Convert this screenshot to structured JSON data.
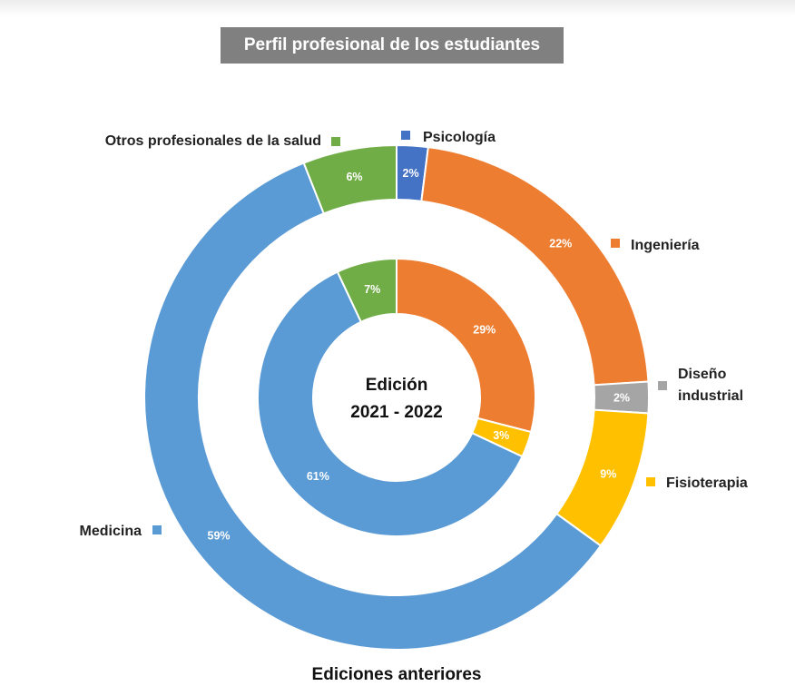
{
  "chart_data": {
    "type": "pie",
    "title": "Perfil profesional de los estudiantes",
    "categories": [
      "Psicología",
      "Ingeniería",
      "Diseño industrial",
      "Fisioterapia",
      "Medicina",
      "Otros profesionales de la salud"
    ],
    "colors": [
      "#4472c4",
      "#ed7d31",
      "#a5a5a5",
      "#ffc000",
      "#5b9bd5",
      "#70ad47"
    ],
    "series": [
      {
        "name": "Ediciones anteriores",
        "ring": "outer",
        "values": [
          2,
          22,
          2,
          9,
          59,
          6
        ],
        "labels": [
          "2%",
          "22%",
          "2%",
          "9%",
          "59%",
          "6%"
        ]
      },
      {
        "name": "Edición 2021 - 2022",
        "ring": "inner",
        "values": [
          0,
          29,
          0,
          3,
          61,
          7
        ],
        "labels": [
          "",
          "29%",
          "",
          "3%",
          "61%",
          "7%"
        ]
      }
    ],
    "legend_labels": [
      "Psicología",
      "Ingeniería",
      "Diseño\nindustrial",
      "Fisioterapia",
      "Medicina",
      "Otros profesionales de la salud"
    ],
    "center_text": [
      "Edición",
      "2021 - 2022"
    ],
    "bottom_text": "Ediciones anteriores",
    "legend_placement": "around"
  }
}
